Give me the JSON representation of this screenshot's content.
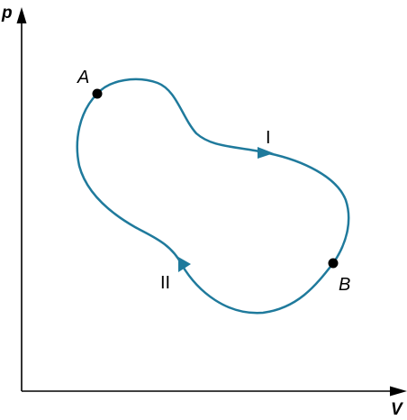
{
  "axes": {
    "y_label": "p",
    "x_label": "V"
  },
  "points": [
    {
      "label": "A"
    },
    {
      "label": "B"
    }
  ],
  "paths": [
    {
      "label": "I"
    },
    {
      "label": "II"
    }
  ],
  "colors": {
    "curve": "#1f7a9c",
    "axis": "#000000",
    "point": "#000000"
  }
}
